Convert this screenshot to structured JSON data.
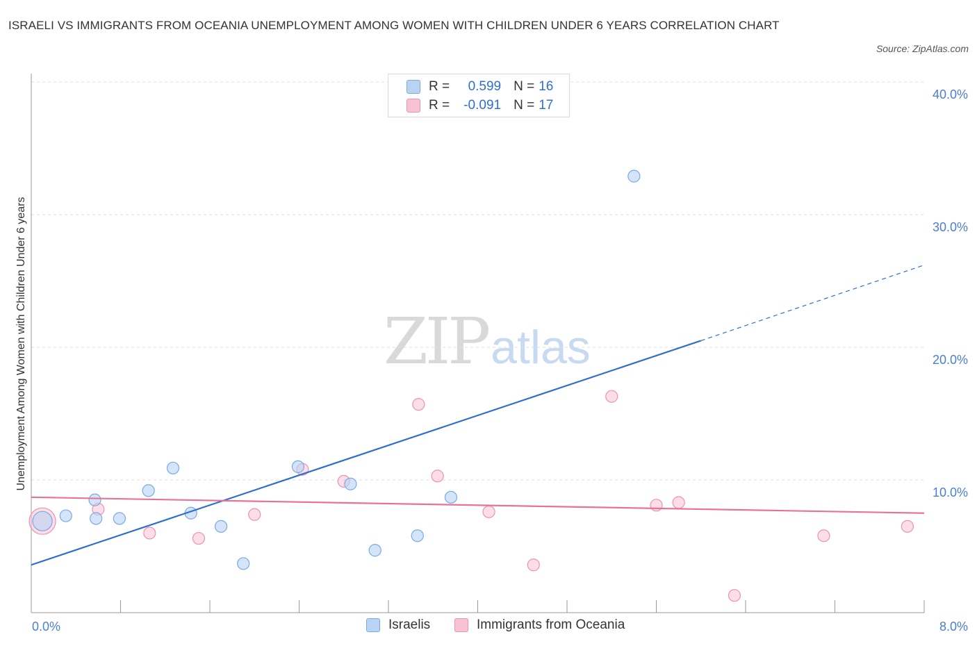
{
  "title": "ISRAELI VS IMMIGRANTS FROM OCEANIA UNEMPLOYMENT AMONG WOMEN WITH CHILDREN UNDER 6 YEARS CORRELATION CHART",
  "source": "Source: ZipAtlas.com",
  "watermark": {
    "zip": "ZIP",
    "atlas": "atlas"
  },
  "colors": {
    "israelis_fill": "#b9d3f5",
    "israelis_stroke": "#7aa8e6",
    "israelis_line": "#2d6fd0",
    "oceania_fill": "#f7c3d3",
    "oceania_stroke": "#eb93b0",
    "oceania_line": "#e8719a",
    "axis_text": "#4a7fd4",
    "grid": "#dddddd"
  },
  "legend": {
    "israelis": {
      "r_label": "R = ",
      "r_value": "0.599",
      "n_label": "N = ",
      "n_value": "16"
    },
    "oceania": {
      "r_label": "R = ",
      "r_value": "-0.091",
      "n_label": "N = ",
      "n_value": "17"
    }
  },
  "bottom_legend": {
    "israelis": "Israelis",
    "oceania": "Immigrants from Oceania"
  },
  "chart_data": {
    "type": "scatter",
    "title": "ISRAELI VS IMMIGRANTS FROM OCEANIA UNEMPLOYMENT AMONG WOMEN WITH CHILDREN UNDER 6 YEARS CORRELATION CHART",
    "xlabel": "",
    "ylabel": "Unemployment Among Women with Children Under 6 years",
    "xlim": [
      0,
      8
    ],
    "ylim": [
      0,
      40
    ],
    "x_tick_labels": [
      "0.0%",
      "8.0%"
    ],
    "y_ticks": [
      10,
      20,
      30,
      40
    ],
    "y_tick_labels": [
      "10.0%",
      "20.0%",
      "30.0%",
      "40.0%"
    ],
    "grid": true,
    "series": [
      {
        "name": "Israelis",
        "x": [
          0.1,
          0.31,
          0.57,
          0.79,
          1.05,
          1.27,
          1.43,
          1.7,
          1.9,
          2.39,
          2.86,
          3.08,
          3.46,
          3.76,
          5.4,
          0.58
        ],
        "y": [
          6.9,
          7.3,
          8.5,
          7.1,
          9.2,
          10.9,
          7.5,
          6.5,
          3.7,
          11.0,
          9.7,
          4.7,
          5.8,
          8.7,
          32.9,
          7.1
        ],
        "trend": {
          "x_start": 0.0,
          "y_start": 3.6,
          "x_solid_end": 6.0,
          "y_solid_end": 20.5,
          "x_dash_end": 8.0,
          "y_dash_end": 26.2
        }
      },
      {
        "name": "Immigrants from Oceania",
        "x": [
          0.1,
          0.6,
          1.06,
          1.5,
          2.0,
          2.43,
          2.8,
          3.47,
          3.64,
          4.1,
          4.5,
          5.2,
          5.6,
          5.8,
          6.3,
          7.1,
          7.85
        ],
        "y": [
          6.9,
          7.8,
          6.0,
          5.6,
          7.4,
          10.8,
          9.9,
          15.7,
          10.3,
          7.6,
          3.6,
          16.3,
          8.1,
          8.3,
          1.3,
          5.8,
          6.5
        ],
        "trend": {
          "x_start": 0.0,
          "y_start": 8.7,
          "x_end": 8.0,
          "y_end": 7.5
        }
      }
    ]
  }
}
